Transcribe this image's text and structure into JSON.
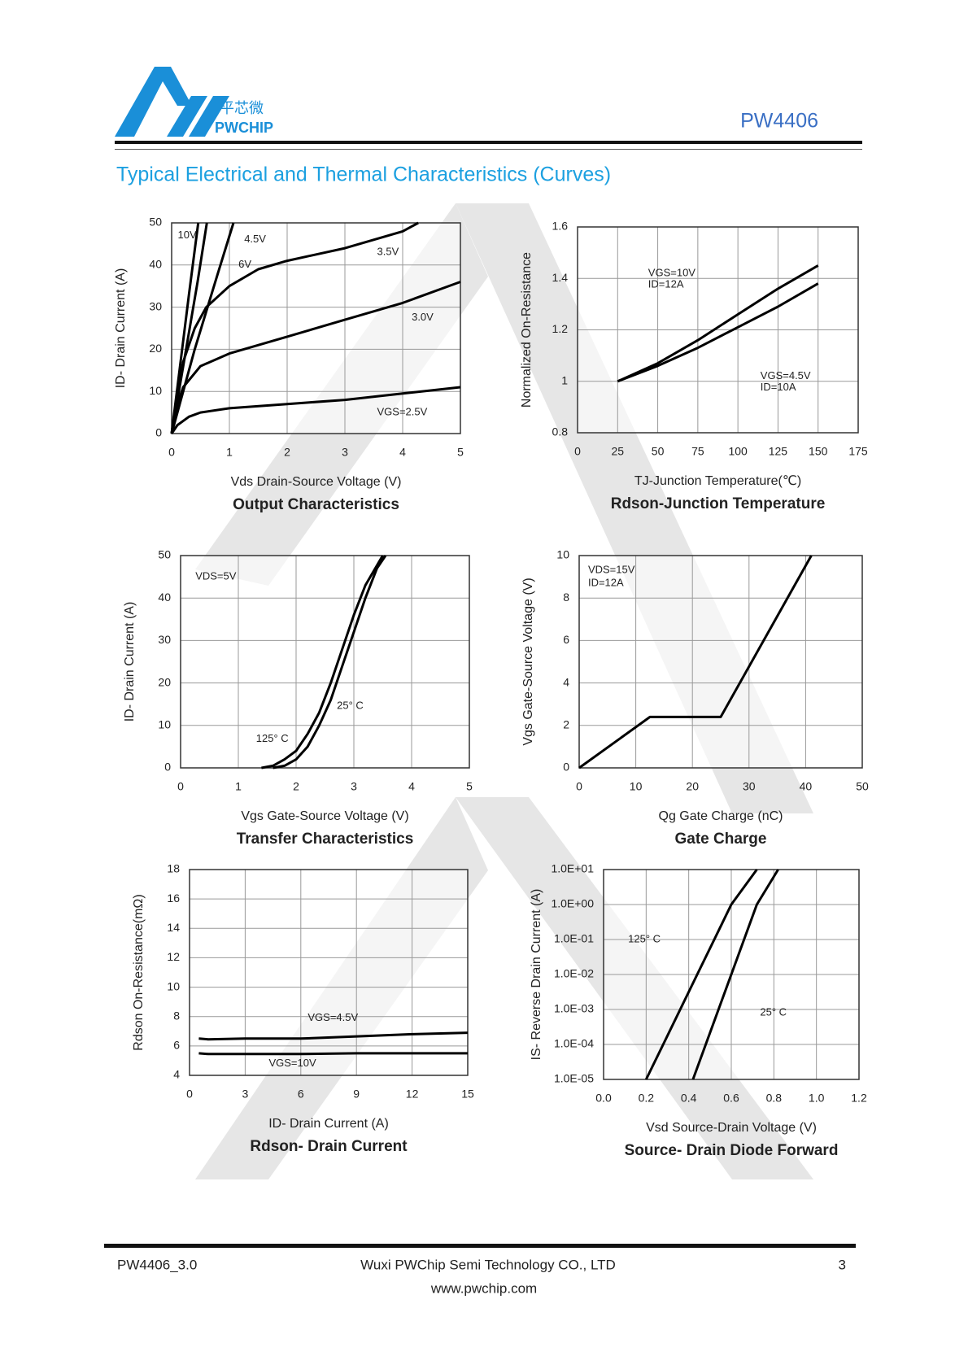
{
  "header": {
    "brand_cn": "平芯微",
    "brand": "PWCHIP",
    "part": "PW4406",
    "title": "Typical Electrical and Thermal Characteristics (Curves)"
  },
  "footer": {
    "doc": "PW4406_3.0",
    "company": "Wuxi PWChip Semi Technology CO., LTD",
    "page": "3",
    "website": "www.pwchip.com"
  },
  "chart_data": [
    {
      "type": "line",
      "title": "Output Characteristics",
      "xlabel": "Vds Drain-Source Voltage (V)",
      "ylabel": "ID- Drain Current (A)",
      "xlim": [
        0,
        5
      ],
      "xticks": [
        0,
        1,
        2,
        3,
        4,
        5
      ],
      "ylim": [
        0,
        50
      ],
      "yticks": [
        0,
        10,
        20,
        30,
        40,
        50
      ],
      "grid": true,
      "color": "#000000",
      "series": [
        {
          "x": [
            0,
            0.1,
            0.2,
            0.3,
            0.46
          ],
          "values": [
            0,
            11,
            22,
            33,
            50
          ]
        },
        {
          "x": [
            0,
            0.15,
            0.3,
            0.45,
            0.61
          ],
          "values": [
            0,
            12,
            24,
            36,
            50
          ]
        },
        {
          "x": [
            0,
            0.2,
            0.4,
            0.6,
            0.8,
            1.07
          ],
          "values": [
            0,
            10,
            20,
            29,
            38,
            50
          ]
        },
        {
          "x": [
            0,
            0.1,
            0.2,
            0.4,
            0.6,
            1,
            1.5,
            2,
            3,
            4,
            4.27
          ],
          "values": [
            0,
            10,
            17,
            25,
            30,
            35,
            39,
            41,
            44,
            48,
            50
          ]
        },
        {
          "x": [
            0,
            0.1,
            0.2,
            0.5,
            1,
            2,
            3,
            4,
            5
          ],
          "values": [
            0,
            7,
            11,
            16,
            19,
            23,
            27,
            31,
            36
          ]
        },
        {
          "x": [
            0,
            0.1,
            0.3,
            0.5,
            1,
            2,
            3,
            4,
            5
          ],
          "values": [
            0,
            2,
            4,
            5,
            6,
            7,
            8,
            9.5,
            11
          ]
        }
      ],
      "annotations": [
        "10V",
        "4.5V",
        "6V",
        "3.5V",
        "3.0V",
        "VGS=2.5V"
      ]
    },
    {
      "type": "line",
      "title": "Rdson-Junction Temperature",
      "xlabel": "TJ-Junction Temperature(℃)",
      "ylabel": "Normalized On-Resistance",
      "xlim": [
        0,
        175
      ],
      "xticks": [
        0,
        25,
        50,
        75,
        100,
        125,
        150,
        175
      ],
      "ylim": [
        0.8,
        1.6
      ],
      "yticks": [
        0.8,
        1,
        1.2,
        1.4,
        1.6
      ],
      "grid": true,
      "color": "#000000",
      "series": [
        {
          "x": [
            25,
            50,
            75,
            100,
            125,
            150
          ],
          "values": [
            1.0,
            1.07,
            1.16,
            1.26,
            1.36,
            1.45
          ]
        },
        {
          "x": [
            25,
            50,
            75,
            100,
            125,
            150
          ],
          "values": [
            1.0,
            1.06,
            1.13,
            1.21,
            1.29,
            1.38
          ]
        }
      ],
      "annotations": [
        "VGS=10V",
        "ID=12A",
        "VGS=4.5V",
        "ID=10A"
      ]
    },
    {
      "type": "line",
      "title": "Transfer Characteristics",
      "xlabel": "Vgs Gate-Source Voltage (V)",
      "ylabel": "ID- Drain Current (A)",
      "xlim": [
        0,
        5
      ],
      "xticks": [
        0,
        1,
        2,
        3,
        4,
        5
      ],
      "ylim": [
        0,
        50
      ],
      "yticks": [
        0,
        10,
        20,
        30,
        40,
        50
      ],
      "grid": true,
      "color": "#000000",
      "series": [
        {
          "x": [
            1.6,
            1.8,
            2,
            2.2,
            2.4,
            2.6,
            2.8,
            3,
            3.2,
            3.4,
            3.55
          ],
          "values": [
            0,
            0.5,
            2,
            5,
            10,
            16,
            24,
            32,
            40,
            47,
            50
          ]
        },
        {
          "x": [
            1.4,
            1.6,
            1.8,
            2,
            2.2,
            2.4,
            2.6,
            2.8,
            3,
            3.2,
            3.5
          ],
          "values": [
            0,
            0.5,
            2,
            4,
            8,
            13,
            20,
            28,
            36,
            43,
            50
          ]
        }
      ],
      "annotations": [
        "VDS=5V",
        "25° C",
        "125° C"
      ]
    },
    {
      "type": "line",
      "title": "Gate Charge",
      "xlabel": "Qg Gate Charge (nC)",
      "ylabel": "Vgs Gate-Source Voltage (V)",
      "xlim": [
        0,
        50
      ],
      "xticks": [
        0,
        10,
        20,
        30,
        40,
        50
      ],
      "ylim": [
        0,
        10
      ],
      "yticks": [
        0,
        2,
        4,
        6,
        8,
        10
      ],
      "grid": true,
      "color": "#000000",
      "series": [
        {
          "x": [
            0,
            12.5,
            25,
            41
          ],
          "values": [
            0,
            2.4,
            2.4,
            10
          ]
        }
      ],
      "annotations": [
        "VDS=15V",
        "ID=12A"
      ]
    },
    {
      "type": "line",
      "title": "Rdson- Drain Current",
      "xlabel": "ID- Drain Current (A)",
      "ylabel": "Rdson On-Resistance(mΩ)",
      "xlim": [
        0,
        15
      ],
      "xticks": [
        0,
        3,
        6,
        9,
        12,
        15
      ],
      "ylim": [
        4,
        18
      ],
      "yticks": [
        4,
        6,
        8,
        10,
        12,
        14,
        16,
        18
      ],
      "grid": true,
      "color": "#000000",
      "series": [
        {
          "x": [
            0.5,
            1,
            3,
            6,
            9,
            12,
            15
          ],
          "values": [
            6.5,
            6.45,
            6.5,
            6.5,
            6.65,
            6.8,
            6.9
          ]
        },
        {
          "x": [
            0.5,
            1,
            3,
            6,
            9,
            12,
            15
          ],
          "values": [
            5.5,
            5.45,
            5.45,
            5.45,
            5.5,
            5.5,
            5.5
          ]
        }
      ],
      "annotations": [
        "VGS=4.5V",
        "VGS=10V"
      ]
    },
    {
      "type": "line",
      "title": "Source- Drain Diode Forward",
      "xlabel": "Vsd Source-Drain Voltage (V)",
      "ylabel": "IS- Reverse Drain Current (A)",
      "xlim": [
        0,
        1.2
      ],
      "xticks": [
        {
          "value": 0,
          "label": "0.0"
        },
        0.2,
        0.4,
        0.6,
        0.8,
        {
          "value": 1,
          "label": "1.0"
        },
        1.2
      ],
      "ylim": [
        1e-05,
        10
      ],
      "log_y": true,
      "yticks": [
        {
          "value": 1e-05,
          "label": "1.0E-05"
        },
        {
          "value": 0.0001,
          "label": "1.0E-04"
        },
        {
          "value": 0.001,
          "label": "1.0E-03"
        },
        {
          "value": 0.01,
          "label": "1.0E-02"
        },
        {
          "value": 0.1,
          "label": "1.0E-01"
        },
        {
          "value": 1,
          "label": "1.0E+00"
        },
        {
          "value": 10,
          "label": "1.0E+01"
        }
      ],
      "grid": true,
      "color": "#000000",
      "series": [
        {
          "x": [
            0.2,
            0.28,
            0.36,
            0.44,
            0.52,
            0.6,
            0.72
          ],
          "values": [
            1e-05,
            0.0001,
            0.001,
            0.01,
            0.1,
            1,
            10
          ]
        },
        {
          "x": [
            0.42,
            0.48,
            0.54,
            0.6,
            0.66,
            0.72,
            0.82
          ],
          "values": [
            1e-05,
            0.0001,
            0.001,
            0.01,
            0.1,
            1,
            10
          ]
        }
      ],
      "annotations": [
        "125° C",
        "25° C"
      ]
    }
  ]
}
